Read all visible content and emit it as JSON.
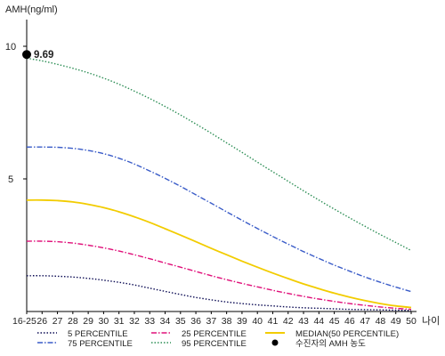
{
  "chart_data": {
    "type": "line",
    "ylabel": "AMH(ng/ml)",
    "xlabel": "나이",
    "categories": [
      "16-25",
      "26",
      "27",
      "28",
      "29",
      "30",
      "31",
      "32",
      "33",
      "34",
      "35",
      "36",
      "37",
      "38",
      "39",
      "40",
      "41",
      "42",
      "43",
      "44",
      "45",
      "46",
      "47",
      "48",
      "49",
      "50"
    ],
    "ylim": [
      0,
      10
    ],
    "yticks": [
      "10",
      "5"
    ],
    "grid": false,
    "legend_position": "bottom",
    "series": [
      {
        "name": "5 PERCENTILE",
        "color": "#0d0d55",
        "dash": "1.5,2",
        "values": [
          1.35,
          1.35,
          1.33,
          1.3,
          1.25,
          1.18,
          1.1,
          1.0,
          0.88,
          0.76,
          0.64,
          0.53,
          0.44,
          0.36,
          0.3,
          0.25,
          0.21,
          0.17,
          0.14,
          0.12,
          0.1,
          0.08,
          0.07,
          0.06,
          0.05,
          0.04
        ]
      },
      {
        "name": "25 PERCENTILE",
        "color": "#e0107a",
        "dash": "6,2,1.5,2",
        "values": [
          2.65,
          2.65,
          2.63,
          2.58,
          2.5,
          2.4,
          2.28,
          2.14,
          1.99,
          1.83,
          1.67,
          1.51,
          1.35,
          1.2,
          1.06,
          0.93,
          0.8,
          0.68,
          0.57,
          0.47,
          0.38,
          0.3,
          0.23,
          0.17,
          0.12,
          0.08
        ]
      },
      {
        "name": "MEDIAN(50 PERCENTILE)",
        "color": "#f2cc00",
        "dash": "",
        "values": [
          4.2,
          4.2,
          4.18,
          4.13,
          4.04,
          3.92,
          3.76,
          3.57,
          3.36,
          3.12,
          2.88,
          2.63,
          2.38,
          2.14,
          1.9,
          1.67,
          1.45,
          1.24,
          1.04,
          0.86,
          0.69,
          0.54,
          0.41,
          0.3,
          0.21,
          0.15
        ]
      },
      {
        "name": "75 PERCENTILE",
        "color": "#3a5cc8",
        "dash": "6,2,1.5,2",
        "values": [
          6.2,
          6.2,
          6.19,
          6.15,
          6.07,
          5.95,
          5.78,
          5.56,
          5.3,
          5.02,
          4.72,
          4.4,
          4.08,
          3.76,
          3.44,
          3.13,
          2.83,
          2.54,
          2.26,
          2.0,
          1.75,
          1.52,
          1.3,
          1.1,
          0.92,
          0.75
        ]
      },
      {
        "name": "95 PERCENTILE",
        "color": "#2f8f57",
        "dash": "1.5,2",
        "values": [
          9.55,
          9.45,
          9.32,
          9.17,
          9.0,
          8.8,
          8.57,
          8.31,
          8.03,
          7.73,
          7.41,
          7.07,
          6.72,
          6.36,
          6.0,
          5.63,
          5.27,
          4.91,
          4.55,
          4.2,
          3.86,
          3.53,
          3.21,
          2.9,
          2.6,
          2.3
        ]
      }
    ],
    "marker": {
      "label": "9.69",
      "y": 9.69,
      "category": "16-25",
      "legend": "수진자의 AMH 농도",
      "color": "#000000"
    }
  }
}
